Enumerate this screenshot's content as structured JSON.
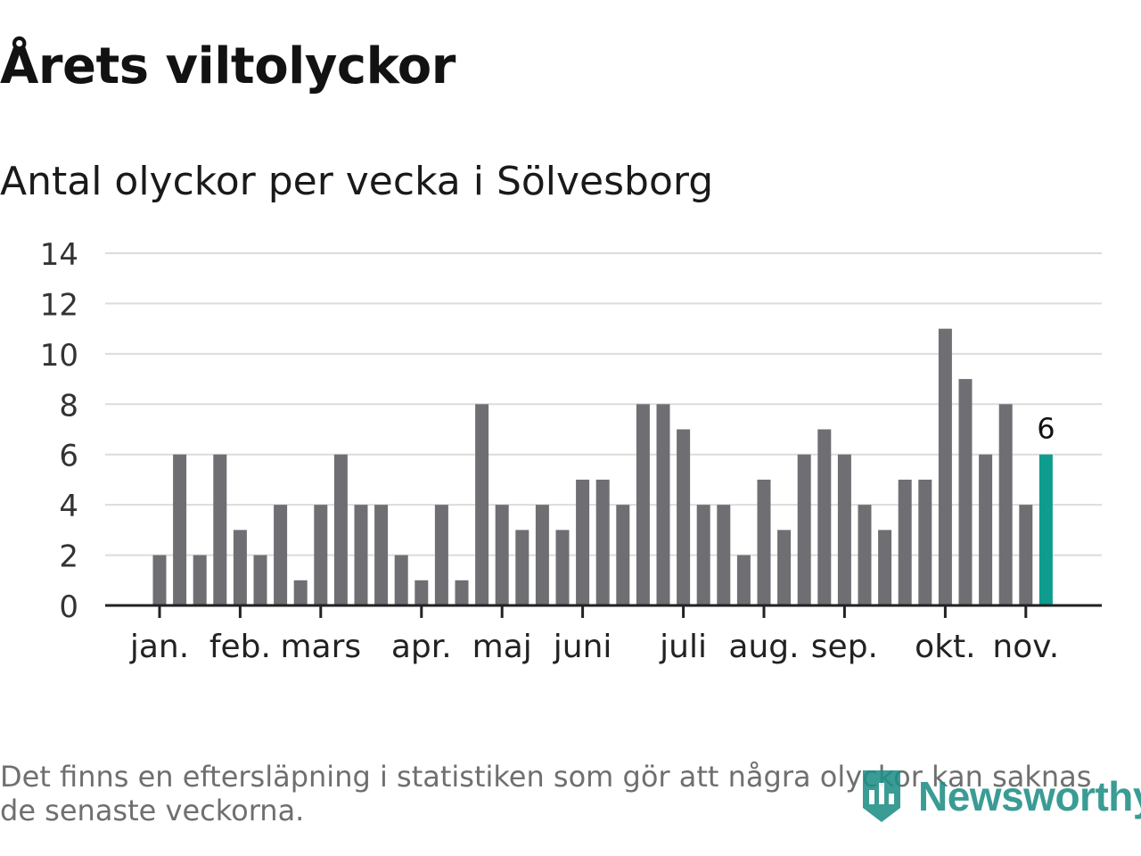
{
  "title": "Årets viltolyckor",
  "subtitle": "Antal olyckor per vecka i Sölvesborg",
  "footnote": "Det finns en eftersläpning i statistiken som gör att några olyckor kan saknas de senaste veckorna.",
  "logo_text": "Newsworthy",
  "colors": {
    "bar": "#6f6e73",
    "highlight": "#0e9c8f",
    "grid": "#dcdcdc",
    "axis": "#222222",
    "brand": "#1f8f86"
  },
  "chart_data": {
    "type": "bar",
    "title": "Antal olyckor per vecka i Sölvesborg",
    "xlabel": "",
    "ylabel": "",
    "ylim": [
      0,
      14
    ],
    "yticks": [
      "0",
      "2",
      "4",
      "6",
      "8",
      "10",
      "12",
      "14"
    ],
    "grid": true,
    "values": [
      2,
      6,
      2,
      6,
      3,
      2,
      4,
      1,
      4,
      6,
      4,
      4,
      2,
      1,
      4,
      1,
      8,
      4,
      3,
      4,
      3,
      5,
      5,
      4,
      8,
      8,
      7,
      4,
      4,
      2,
      5,
      3,
      6,
      7,
      6,
      4,
      3,
      5,
      5,
      11,
      9,
      6,
      8,
      4,
      6
    ],
    "highlight_index": 44,
    "highlight_label": "6",
    "month_labels": [
      {
        "label": "jan.",
        "week_index": 0
      },
      {
        "label": "feb.",
        "week_index": 4
      },
      {
        "label": "mars",
        "week_index": 8
      },
      {
        "label": "apr.",
        "week_index": 13
      },
      {
        "label": "maj",
        "week_index": 17
      },
      {
        "label": "juni",
        "week_index": 21
      },
      {
        "label": "juli",
        "week_index": 26
      },
      {
        "label": "aug.",
        "week_index": 30
      },
      {
        "label": "sep.",
        "week_index": 34
      },
      {
        "label": "okt.",
        "week_index": 39
      },
      {
        "label": "nov.",
        "week_index": 43
      }
    ]
  }
}
